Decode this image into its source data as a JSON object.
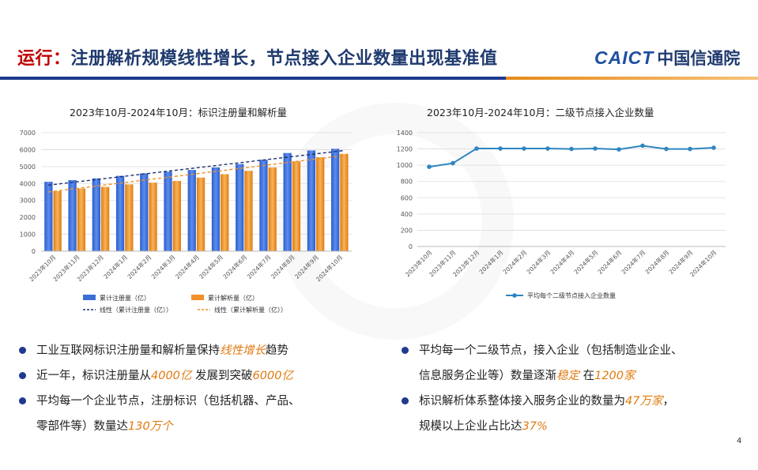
{
  "header": {
    "title_red": "运行：",
    "title_rest": "注册解析规模线性增长，节点接入企业数量出现基准值",
    "logo_en": "CAICT",
    "logo_cn": "中国信通院"
  },
  "page_number": "4",
  "chart_data": [
    {
      "type": "bar",
      "title": "2023年10月-2024年10月：标识注册量和解析量",
      "categories": [
        "2023年10月",
        "2023年11月",
        "2023年12月",
        "2024年1月",
        "2024年2月",
        "2024年3月",
        "2024年4月",
        "2024年5月",
        "2024年6月",
        "2024年7月",
        "2024年8月",
        "2024年9月",
        "2024年10月"
      ],
      "series": [
        {
          "name": "累计注册量（亿）",
          "values": [
            4100,
            4200,
            4300,
            4450,
            4600,
            4700,
            4800,
            4950,
            5150,
            5400,
            5800,
            5950,
            6050
          ],
          "color": "#3b6fd6"
        },
        {
          "name": "累计解析量（亿）",
          "values": [
            3550,
            3700,
            3800,
            3950,
            4050,
            4150,
            4350,
            4550,
            4750,
            4950,
            5300,
            5550,
            5750
          ],
          "color": "#f0902a"
        }
      ],
      "trendlines": [
        {
          "name": "线性（累计注册量（亿））",
          "start": 3900,
          "end": 5950,
          "color": "#1f2f6e"
        },
        {
          "name": "线性（累计解析量（亿））",
          "start": 3500,
          "end": 5650,
          "color": "#f0902a"
        }
      ],
      "yticks": [
        "0",
        "1000",
        "2000",
        "3000",
        "4000",
        "5000",
        "6000",
        "7000"
      ],
      "ylim": [
        0,
        7000
      ],
      "legend_position": "bottom"
    },
    {
      "type": "line",
      "title": "2023年10月-2024年10月：二级节点接入企业数量",
      "categories": [
        "2023年10月",
        "2023年11月",
        "2023年12月",
        "2024年1月",
        "2024年2月",
        "2024年3月",
        "2024年4月",
        "2024年5月",
        "2024年6月",
        "2024年7月",
        "2024年8月",
        "2024年9月",
        "2024年10月"
      ],
      "series": [
        {
          "name": "平均每个二级节点接入企业数量",
          "values": [
            980,
            1025,
            1205,
            1205,
            1205,
            1205,
            1200,
            1205,
            1195,
            1240,
            1200,
            1200,
            1215
          ],
          "color": "#2e86c1"
        }
      ],
      "yticks": [
        "0",
        "200",
        "400",
        "600",
        "800",
        "1000",
        "1200",
        "1400"
      ],
      "ylim": [
        0,
        1400
      ],
      "legend_position": "bottom"
    }
  ],
  "bullets_left": [
    {
      "text": "工业互联网标识注册量和解析量保持",
      "hl": "线性增长",
      "after": "趋势",
      "cont": ""
    },
    {
      "text": "近一年，标识注册量从",
      "hl": "4000亿",
      "after": " 发展到突破",
      "hl2": "6000亿",
      "cont": ""
    },
    {
      "text": "平均每一个企业节点，注册标识（包括机器、产品、",
      "hl": "",
      "after": "",
      "cont_text": "零部件等）数量达",
      "cont_hl": "130万个"
    }
  ],
  "bullets_right": [
    {
      "text": "平均每一个二级节点，接入企业（包括制造业企业、",
      "cont_text": "信息服务企业等）数量逐渐",
      "cont_hl": "稳定",
      "cont_mid": " 在",
      "cont_hl2": "1200家"
    },
    {
      "text": "标识解析体系整体接入服务企业的数量为",
      "hl": "47万家",
      "after": "，",
      "cont_text": "规模以上企业占比达",
      "cont_hl": "37%"
    }
  ]
}
